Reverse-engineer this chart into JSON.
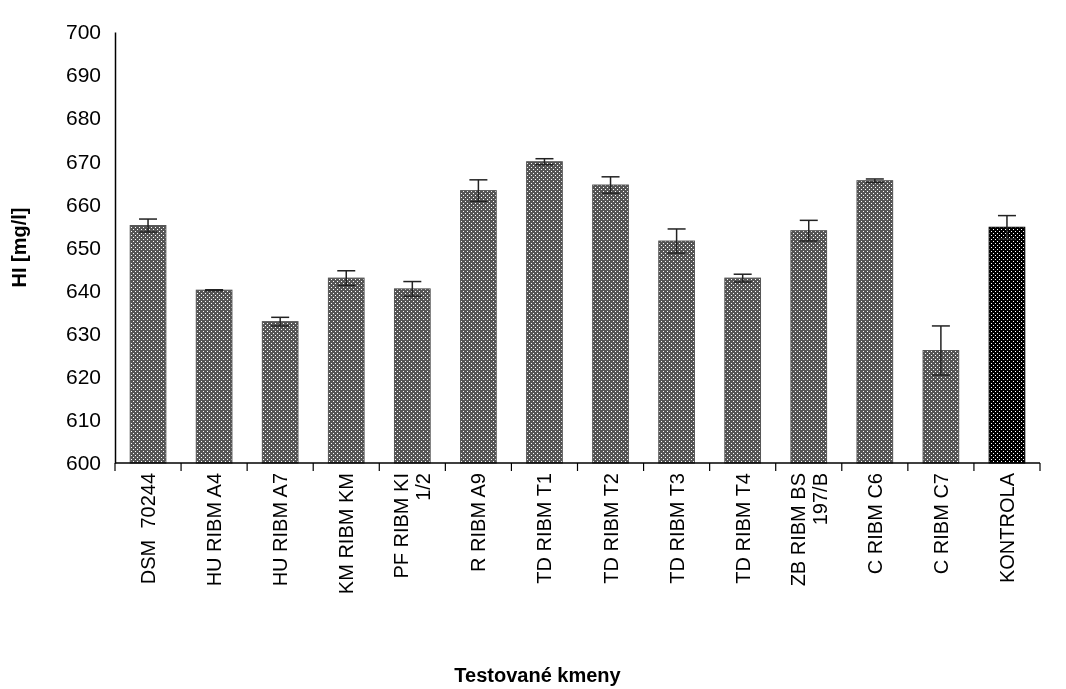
{
  "chart_data": {
    "type": "bar",
    "xlabel": "Testované kmeny",
    "ylabel": "HI [mg/l]",
    "categories": [
      "DSM  70244",
      "HU RIBM A4",
      "HU RIBM A7",
      "KM RIBM KM",
      "PF RIBM KI 1/2",
      "R RIBM A9",
      "TD RIBM T1",
      "TD RIBM T2",
      "TD RIBM T3",
      "TD RIBM T4",
      "ZB RIBM BS 197/B",
      "C RIBM C6",
      "C RIBM C7",
      "KONTROLA"
    ],
    "values": [
      655.1,
      640.1,
      632.8,
      642.9,
      640.4,
      663.2,
      669.9,
      664.5,
      651.5,
      642.9,
      653.9,
      665.5,
      626.1,
      654.7
    ],
    "errors": [
      1.5,
      0.1,
      1.0,
      1.7,
      1.7,
      2.5,
      0.7,
      1.9,
      2.8,
      0.9,
      2.4,
      0.4,
      5.7,
      2.7
    ],
    "colors": [
      "#555555",
      "#555555",
      "#555555",
      "#555555",
      "#555555",
      "#555555",
      "#555555",
      "#555555",
      "#555555",
      "#555555",
      "#555555",
      "#555555",
      "#555555",
      "#000000"
    ],
    "ylim": [
      600,
      700
    ],
    "yticks": [
      600,
      610,
      620,
      630,
      640,
      650,
      660,
      670,
      680,
      690,
      700
    ],
    "grid": false
  }
}
